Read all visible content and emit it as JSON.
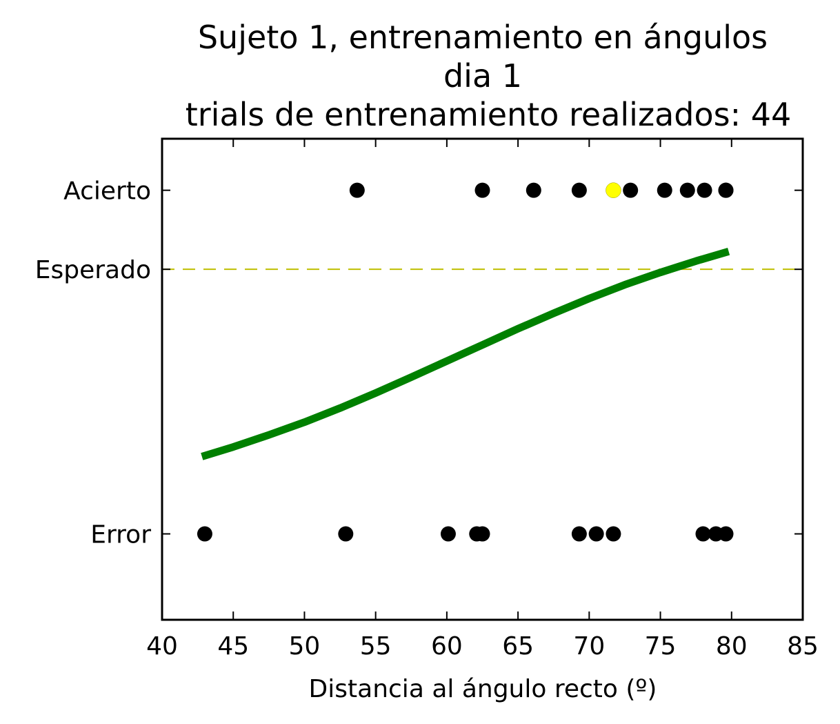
{
  "chart_data": {
    "type": "scatter",
    "title_lines": [
      "Sujeto 1, entrenamiento en ángulos",
      "dia 1",
      "trials de entrenamiento realizados: 44"
    ],
    "xlabel": "Distancia al ángulo recto (º)",
    "ylabel": "",
    "xlim": [
      40,
      85
    ],
    "ylim": [
      -0.25,
      1.15
    ],
    "x_ticks": [
      40,
      45,
      50,
      55,
      60,
      65,
      70,
      75,
      80,
      85
    ],
    "y_ticks": [
      {
        "value": 0,
        "label": "Error"
      },
      {
        "value": 0.77,
        "label": "Esperado"
      },
      {
        "value": 1,
        "label": "Acierto"
      }
    ],
    "grid": false,
    "expected_line": {
      "y": 0.77,
      "style": "dashed",
      "color": "#bfbf00"
    },
    "hits": {
      "y": 1,
      "color": "#000000",
      "x": [
        53.7,
        62.5,
        66.1,
        69.3,
        72.9,
        75.3,
        76.9,
        78.1,
        79.6,
        79.6
      ]
    },
    "errors": {
      "y": 0,
      "color": "#000000",
      "x": [
        43.0,
        52.9,
        60.1,
        62.1,
        62.5,
        69.3,
        70.5,
        71.7,
        78.0,
        78.9,
        79.6
      ]
    },
    "current_trial": {
      "x": 71.7,
      "y": 1,
      "color": "#ffff00"
    },
    "fit_curve": {
      "color": "#008000",
      "x": [
        42.8,
        45,
        47.5,
        50,
        52.5,
        55,
        57.5,
        60,
        62.5,
        65,
        67.5,
        70,
        72.5,
        75,
        77.5,
        79.8
      ],
      "y": [
        0.225,
        0.253,
        0.288,
        0.325,
        0.366,
        0.41,
        0.456,
        0.503,
        0.55,
        0.597,
        0.642,
        0.685,
        0.725,
        0.761,
        0.794,
        0.822
      ]
    }
  }
}
